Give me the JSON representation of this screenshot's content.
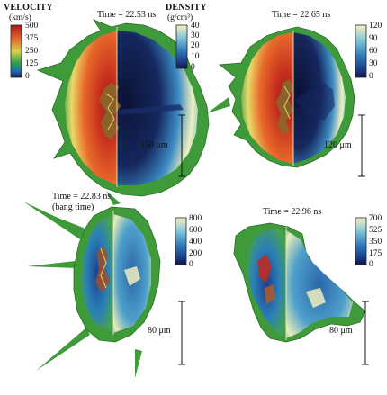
{
  "legend": {
    "velocity_title": "VELOCITY",
    "velocity_unit": "(km/s)",
    "velocity_ticks": [
      "500",
      "375",
      "250",
      "125",
      "0"
    ],
    "density_title": "DENSITY",
    "density_unit": "(g/cm³)"
  },
  "panels": [
    {
      "time": "Time = 22.53 ns",
      "ticks": [
        "40",
        "30",
        "20",
        "10",
        "0"
      ],
      "scale": "150 μm"
    },
    {
      "time": "Time = 22.65 ns",
      "ticks": [
        "120",
        "90",
        "60",
        "30",
        "0"
      ],
      "scale": "120 μm"
    },
    {
      "time": "Time = 22.83 ns",
      "subtitle": "(bang time)",
      "ticks": [
        "800",
        "600",
        "400",
        "200",
        "0"
      ],
      "scale": "80 μm"
    },
    {
      "time": "Time = 22.96 ns",
      "ticks": [
        "700",
        "525",
        "350",
        "175",
        "0"
      ],
      "scale": "80 μm"
    }
  ],
  "colors": {
    "outer_green": "#3f9a3a",
    "velocity_hot": "#c8281e",
    "density_dark": "#14235a",
    "density_light": "#f3f0b0"
  }
}
